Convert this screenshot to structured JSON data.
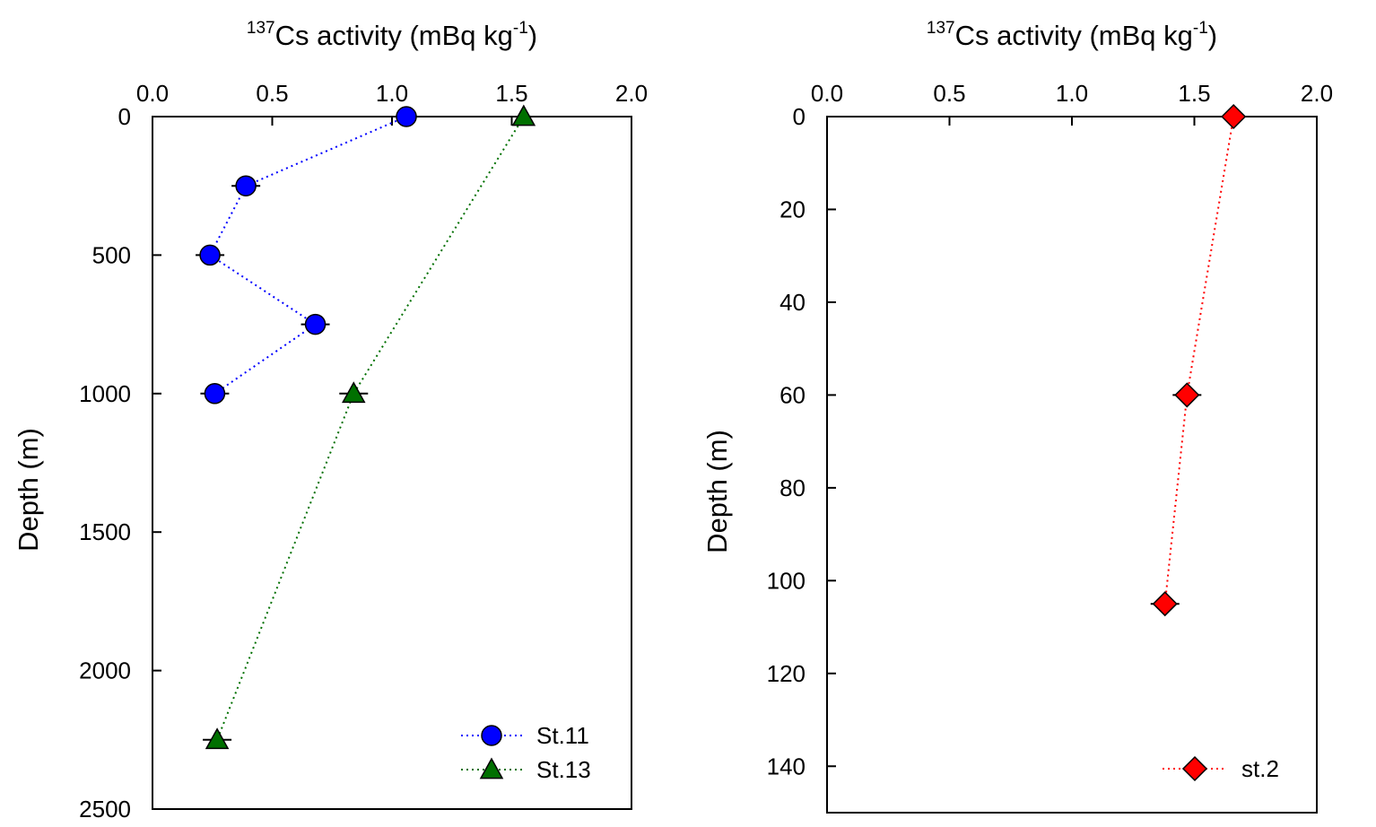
{
  "chart_data": [
    {
      "type": "scatter",
      "title": "",
      "xlabel_prefix": "137",
      "xlabel_main": "Cs activity (mBq kg",
      "xlabel_exp": "-1",
      "xlabel_close": ")",
      "ylabel": "Depth (m)",
      "xlim": [
        0,
        2
      ],
      "ylim": [
        0,
        2500
      ],
      "y_inverted": true,
      "x_ticks": [
        "0.0",
        "0.5",
        "1.0",
        "1.5",
        "2.0"
      ],
      "x_tick_values": [
        0,
        0.5,
        1.0,
        1.5,
        2.0
      ],
      "y_ticks": [
        "0",
        "500",
        "1000",
        "1500",
        "2000",
        "2500"
      ],
      "y_tick_values": [
        0,
        500,
        1000,
        1500,
        2000,
        2500
      ],
      "legend_position": "bottom-right",
      "series": [
        {
          "name": "St.11",
          "color": "#0000ff",
          "marker": "circle",
          "line": "dotted",
          "x": [
            1.06,
            0.39,
            0.24,
            0.68,
            0.26
          ],
          "y": [
            0,
            250,
            500,
            750,
            1000
          ]
        },
        {
          "name": "St.13",
          "color": "#007000",
          "marker": "triangle",
          "line": "dotted",
          "x": [
            1.55,
            0.84,
            0.27
          ],
          "y": [
            0,
            1000,
            2250
          ]
        }
      ]
    },
    {
      "type": "scatter",
      "title": "",
      "xlabel_prefix": "137",
      "xlabel_main": "Cs activity (mBq kg",
      "xlabel_exp": "-1",
      "xlabel_close": ")",
      "ylabel": "Depth (m)",
      "xlim": [
        0,
        2
      ],
      "ylim": [
        0,
        150
      ],
      "y_inverted": true,
      "x_ticks": [
        "0.0",
        "0.5",
        "1.0",
        "1.5",
        "2.0"
      ],
      "x_tick_values": [
        0,
        0.5,
        1.0,
        1.5,
        2.0
      ],
      "y_ticks": [
        "0",
        "20",
        "40",
        "60",
        "80",
        "100",
        "120",
        "140"
      ],
      "y_tick_values": [
        0,
        20,
        40,
        60,
        80,
        100,
        120,
        140
      ],
      "legend_position": "bottom-right",
      "series": [
        {
          "name": "st.2",
          "color": "#ff0000",
          "marker": "diamond",
          "line": "dotted",
          "x": [
            1.66,
            1.47,
            1.38
          ],
          "y": [
            0,
            60,
            105
          ]
        }
      ]
    }
  ]
}
